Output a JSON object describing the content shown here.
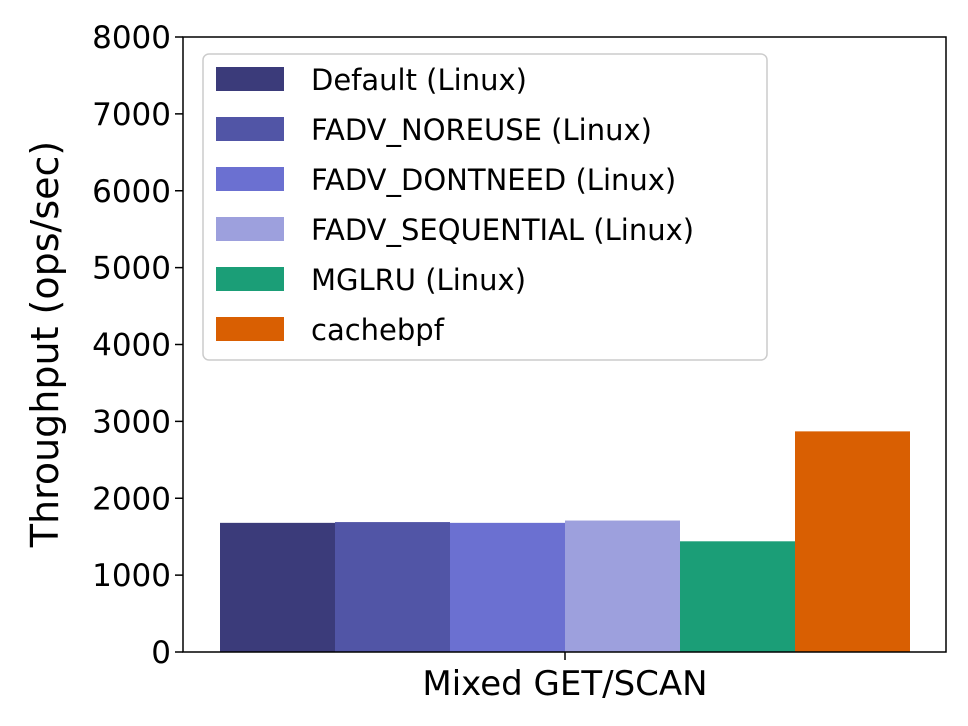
{
  "chart_data": {
    "type": "bar",
    "title": "",
    "xlabel": "",
    "ylabel": "Throughput (ops/sec)",
    "categories": [
      "Mixed GET/SCAN"
    ],
    "ylim": [
      0,
      8000
    ],
    "yticks": [
      "0",
      "1000",
      "2000",
      "3000",
      "4000",
      "5000",
      "6000",
      "7000",
      "8000"
    ],
    "grid": false,
    "legend_position": "top-left",
    "series": [
      {
        "name": "Default (Linux)",
        "color": "#3b3b7a",
        "values": [
          1680
        ]
      },
      {
        "name": "FADV_NOREUSE (Linux)",
        "color": "#5155a6",
        "values": [
          1690
        ]
      },
      {
        "name": "FADV_DONTNEED (Linux)",
        "color": "#6b70d1",
        "values": [
          1680
        ]
      },
      {
        "name": "FADV_SEQUENTIAL (Linux)",
        "color": "#9da0dd",
        "values": [
          1710
        ]
      },
      {
        "name": "MGLRU (Linux)",
        "color": "#1b9e77",
        "values": [
          1440
        ]
      },
      {
        "name": "cachebpf",
        "color": "#d95f02",
        "values": [
          2870
        ]
      }
    ]
  }
}
